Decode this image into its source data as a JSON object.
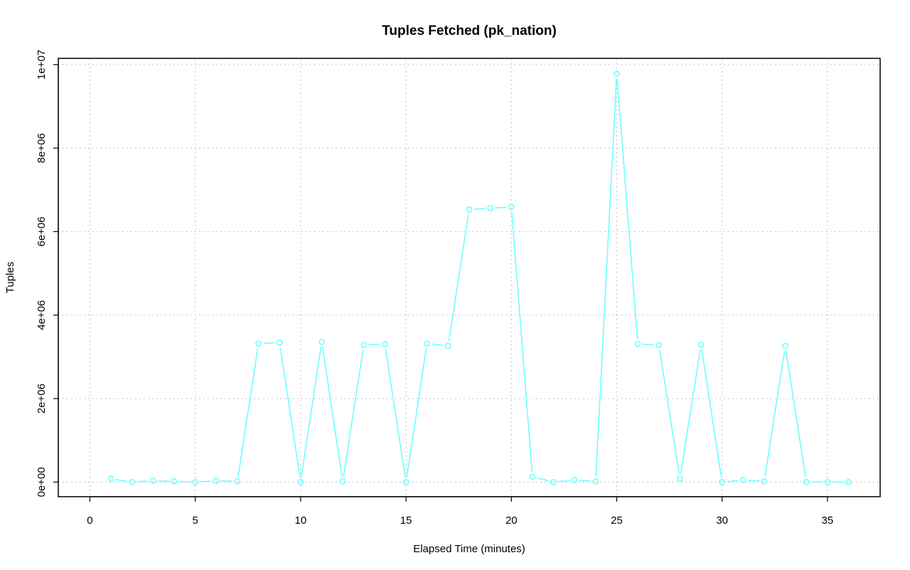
{
  "chart_data": {
    "type": "line",
    "title": "Tuples Fetched (pk_nation)",
    "xlabel": "Elapsed Time (minutes)",
    "ylabel": "Tuples",
    "xlim": [
      -1.5,
      37.5
    ],
    "ylim": [
      -350000,
      10150000
    ],
    "x_ticks": [
      0,
      5,
      10,
      15,
      20,
      25,
      30,
      35
    ],
    "x_tick_labels": [
      "0",
      "5",
      "10",
      "15",
      "20",
      "25",
      "30",
      "35"
    ],
    "y_ticks": [
      0,
      2000000,
      4000000,
      6000000,
      8000000,
      10000000
    ],
    "y_tick_labels": [
      "0e+00",
      "2e+06",
      "4e+06",
      "6e+06",
      "8e+06",
      "1e+07"
    ],
    "grid": true,
    "series": [
      {
        "color": "#66ffff",
        "marker": "open-circle",
        "x": [
          1,
          2,
          3,
          4,
          5,
          6,
          7,
          8,
          9,
          10,
          11,
          12,
          13,
          14,
          15,
          16,
          17,
          18,
          19,
          20,
          21,
          22,
          23,
          24,
          25,
          26,
          27,
          28,
          29,
          30,
          31,
          32,
          33,
          34,
          35,
          36
        ],
        "values": [
          80000,
          0,
          30000,
          20000,
          0,
          30000,
          20000,
          3320000,
          3340000,
          0,
          3360000,
          20000,
          3290000,
          3300000,
          0,
          3320000,
          3260000,
          6530000,
          6560000,
          6590000,
          130000,
          0,
          50000,
          20000,
          9780000,
          3310000,
          3280000,
          80000,
          3290000,
          0,
          50000,
          20000,
          3260000,
          0,
          0,
          0
        ]
      }
    ]
  }
}
